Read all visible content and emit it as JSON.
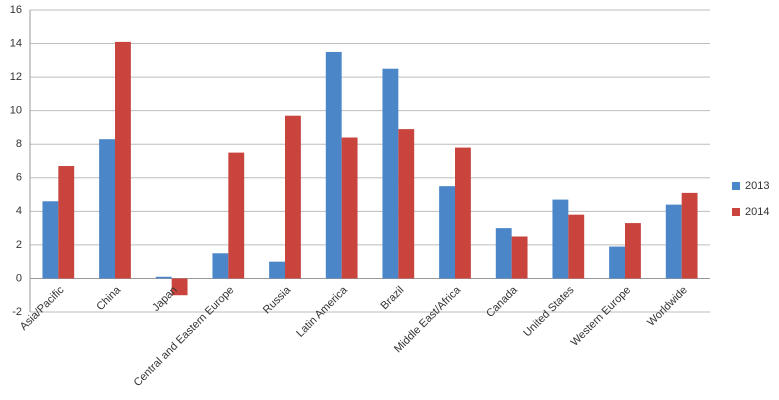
{
  "chart_data": {
    "type": "bar",
    "categories": [
      "Asia/Pacific",
      "China",
      "Japan",
      "Central and Eastern Europe",
      "Russia",
      "Latin America",
      "Brazil",
      "Middle East/Africa",
      "Canada",
      "United States",
      "Western Europe",
      "Worldwide"
    ],
    "series": [
      {
        "name": "2013",
        "color": "#4a86c8",
        "values": [
          4.6,
          8.3,
          0.1,
          1.5,
          1.0,
          13.5,
          12.5,
          5.5,
          3.0,
          4.7,
          1.9,
          4.4
        ]
      },
      {
        "name": "2014",
        "color": "#c8443d",
        "values": [
          6.7,
          14.1,
          -1.0,
          7.5,
          9.7,
          8.4,
          8.9,
          7.8,
          2.5,
          3.8,
          3.3,
          5.1
        ]
      }
    ],
    "ylim": [
      -2,
      16
    ],
    "yticks": [
      -2,
      0,
      2,
      4,
      6,
      8,
      10,
      12,
      14,
      16
    ],
    "grid": true,
    "legend": "right"
  }
}
